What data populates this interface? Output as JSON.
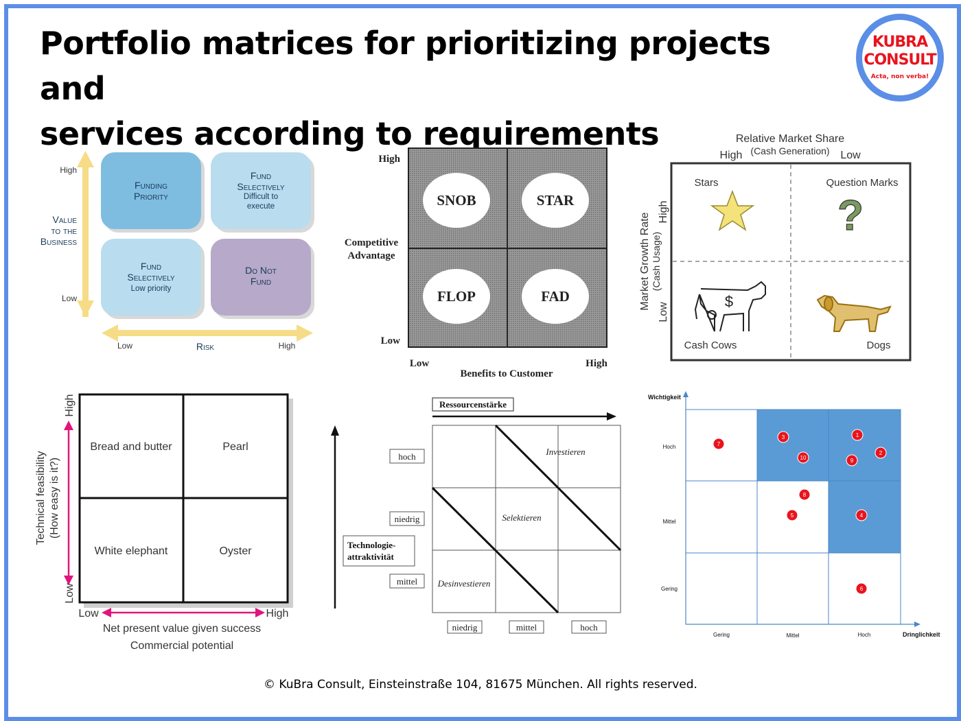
{
  "title_line1": "Portfolio matrices for prioritizing projects and",
  "title_line2": "services according to requirements",
  "logo": {
    "line1": "KUBRA",
    "line2": "CONSULT",
    "tagline": "Acta, non verba!"
  },
  "footer": "© KuBra Consult, Einsteinstraße 104, 81675 München. All rights reserved.",
  "m1": {
    "y_high": "High",
    "y_low": "Low",
    "y_title1": "Value",
    "y_title2": "to the",
    "y_title3": "Business",
    "x_low": "Low",
    "x_title": "Risk",
    "x_high": "High",
    "tl_1": "Funding",
    "tl_2": "Priority",
    "tr_1": "Fund",
    "tr_2": "Selectively",
    "tr_3": "Difficult to",
    "tr_4": "execute",
    "bl_1": "Fund",
    "bl_2": "Selectively",
    "bl_3": "Low priority",
    "br_1": "Do Not",
    "br_2": "Fund",
    "colors": {
      "blue": "#7fbde0",
      "light_blue": "#b9dcef",
      "purple": "#b7a9c9",
      "arrow": "#f6dc86"
    }
  },
  "m2": {
    "y_high": "High",
    "y_low": "Low",
    "y_title1": "Competitive",
    "y_title2": "Advantage",
    "x_low": "Low",
    "x_high": "High",
    "x_title": "Benefits to Customer",
    "q_tl": "SNOB",
    "q_tr": "STAR",
    "q_bl": "FLOP",
    "q_br": "FAD"
  },
  "m3": {
    "top_title": "Relative Market Share",
    "top_sub": "(Cash Generation)",
    "top_high": "High",
    "top_low": "Low",
    "side_title": "Market Growth Rate",
    "side_sub": "(Cash Usage)",
    "side_high": "High",
    "side_low": "Low",
    "q_tl": "Stars",
    "q_tr": "Question Marks",
    "q_bl": "Cash Cows",
    "q_br": "Dogs",
    "dollar": "$",
    "qmark": "?"
  },
  "m4": {
    "q_tl": "Bread and butter",
    "q_tr": "Pearl",
    "q_bl": "White elephant",
    "q_br": "Oyster",
    "y_title1": "Technical feasibility",
    "y_title2": "(How easy is it?)",
    "y_high": "High",
    "y_low": "Low",
    "x_low": "Low",
    "x_high": "High",
    "x_title1": "Net present value given success",
    "x_title2": "Commercial potential"
  },
  "m5": {
    "top_label": "Ressourcenstärke",
    "y_hoch": "hoch",
    "y_niedrig": "niedrig",
    "y_mittel": "mittel",
    "y_title1": "Technologie-",
    "y_title2": "attraktivität",
    "x_niedrig": "niedrig",
    "x_mittel": "mittel",
    "x_hoch": "hoch",
    "z_invest": "Investieren",
    "z_select": "Selektieren",
    "z_desinvest": "Desinvestieren"
  },
  "m6": {
    "y_title": "Wichtigkeit",
    "x_title": "Dringlichkeit",
    "y_hoch": "Hoch",
    "y_mittel": "Mittel",
    "y_gering": "Gering",
    "x_gering": "Gering",
    "x_mittel": "Mittel",
    "x_hoch": "Hoch",
    "highlight_color": "#5b9bd5",
    "dot_color": "#e8141e",
    "points": [
      "7",
      "3",
      "10",
      "1",
      "2",
      "9",
      "8",
      "5",
      "4",
      "6"
    ]
  }
}
